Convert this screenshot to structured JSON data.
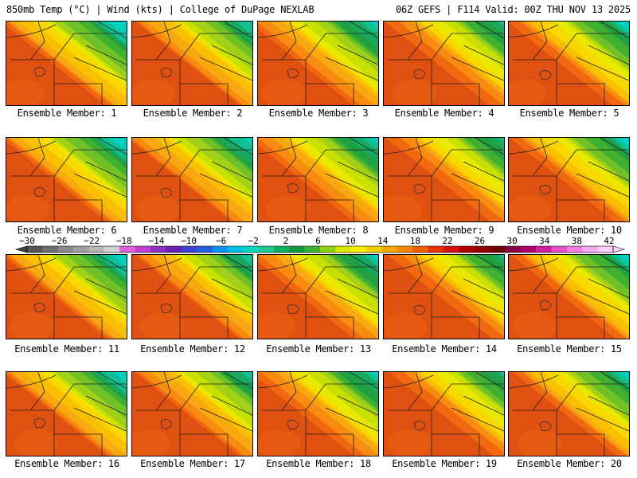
{
  "header": {
    "left_title": "850mb Temp (°C) | Wind (kts) | College of DuPage NEXLAB",
    "right_title": "06Z GEFS | F114 Valid: 00Z THU NOV 13 2025"
  },
  "member_label_prefix": "Ensemble Member: ",
  "members": [
    {
      "id": "1"
    },
    {
      "id": "2"
    },
    {
      "id": "3"
    },
    {
      "id": "4"
    },
    {
      "id": "5"
    },
    {
      "id": "6"
    },
    {
      "id": "7"
    },
    {
      "id": "8"
    },
    {
      "id": "9"
    },
    {
      "id": "10"
    },
    {
      "id": "11"
    },
    {
      "id": "12"
    },
    {
      "id": "13"
    },
    {
      "id": "14"
    },
    {
      "id": "15"
    },
    {
      "id": "16"
    },
    {
      "id": "17"
    },
    {
      "id": "18"
    },
    {
      "id": "19"
    },
    {
      "id": "20"
    }
  ],
  "colorbar": {
    "labels": [
      "-30",
      "-26",
      "-22",
      "-18",
      "-14",
      "-10",
      "-6",
      "-2",
      "2",
      "6",
      "10",
      "14",
      "18",
      "22",
      "26",
      "30",
      "34",
      "38",
      "42"
    ],
    "colors": [
      "#555555",
      "#707070",
      "#8a8a8a",
      "#a0a0a0",
      "#b8b8b8",
      "#d0d0d0",
      "#e060e0",
      "#c040d0",
      "#9030c0",
      "#6a20b0",
      "#4040d0",
      "#2060e0",
      "#1090f0",
      "#00c0e8",
      "#00d8c0",
      "#20c890",
      "#10b060",
      "#109840",
      "#40b030",
      "#90d010",
      "#d8e800",
      "#f8f000",
      "#f8d000",
      "#f8a800",
      "#f88800",
      "#f06000",
      "#e83000",
      "#d81010",
      "#b00000",
      "#900000",
      "#700000",
      "#880040",
      "#b00070",
      "#d020a0",
      "#e850c8",
      "#f080e0",
      "#f8a8f0",
      "#fcd0f8"
    ]
  }
}
